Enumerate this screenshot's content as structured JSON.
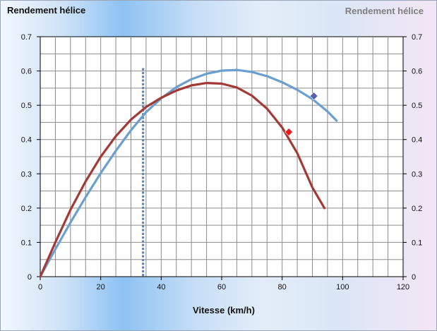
{
  "chart_data": {
    "type": "line",
    "title": "Rendement hélice",
    "title_right": "Rendement hélice",
    "xlabel": "Vitesse (km/h)",
    "ylabel": "",
    "xlim": [
      0,
      120
    ],
    "ylim": [
      0,
      0.7
    ],
    "x_ticks": [
      "0",
      "20",
      "40",
      "60",
      "80",
      "100",
      "120"
    ],
    "y_ticks": [
      "0",
      "0.1",
      "0.2",
      "0.3",
      "0.4",
      "0.5",
      "0.6",
      "0.7"
    ],
    "grid": true,
    "series": [
      {
        "color": "#6a9fcf",
        "x": [
          0,
          5,
          10,
          15,
          20,
          25,
          30,
          35,
          40,
          45,
          50,
          55,
          60,
          65,
          70,
          75,
          80,
          85,
          90,
          95,
          98
        ],
        "y": [
          0,
          0.08,
          0.158,
          0.232,
          0.302,
          0.367,
          0.427,
          0.48,
          0.52,
          0.553,
          0.576,
          0.592,
          0.601,
          0.603,
          0.597,
          0.585,
          0.567,
          0.545,
          0.518,
          0.482,
          0.455
        ]
      },
      {
        "color": "#a33a36",
        "x": [
          0,
          5,
          10,
          15,
          20,
          25,
          30,
          35,
          40,
          45,
          50,
          55,
          60,
          65,
          70,
          75,
          80,
          85,
          90,
          94
        ],
        "y": [
          0,
          0.1,
          0.195,
          0.278,
          0.35,
          0.41,
          0.458,
          0.495,
          0.522,
          0.543,
          0.558,
          0.565,
          0.563,
          0.552,
          0.528,
          0.49,
          0.435,
          0.36,
          0.26,
          0.2
        ]
      }
    ],
    "markers": [
      {
        "shape": "diamond",
        "color": "#5b5fb6",
        "x": 90.5,
        "y": 0.527
      },
      {
        "shape": "diamond",
        "color": "#e81f1f",
        "x": 82.2,
        "y": 0.422
      }
    ],
    "vline": {
      "x": 34,
      "y_top": 0.605,
      "color": "#5c87b7",
      "style": "dotted"
    }
  }
}
